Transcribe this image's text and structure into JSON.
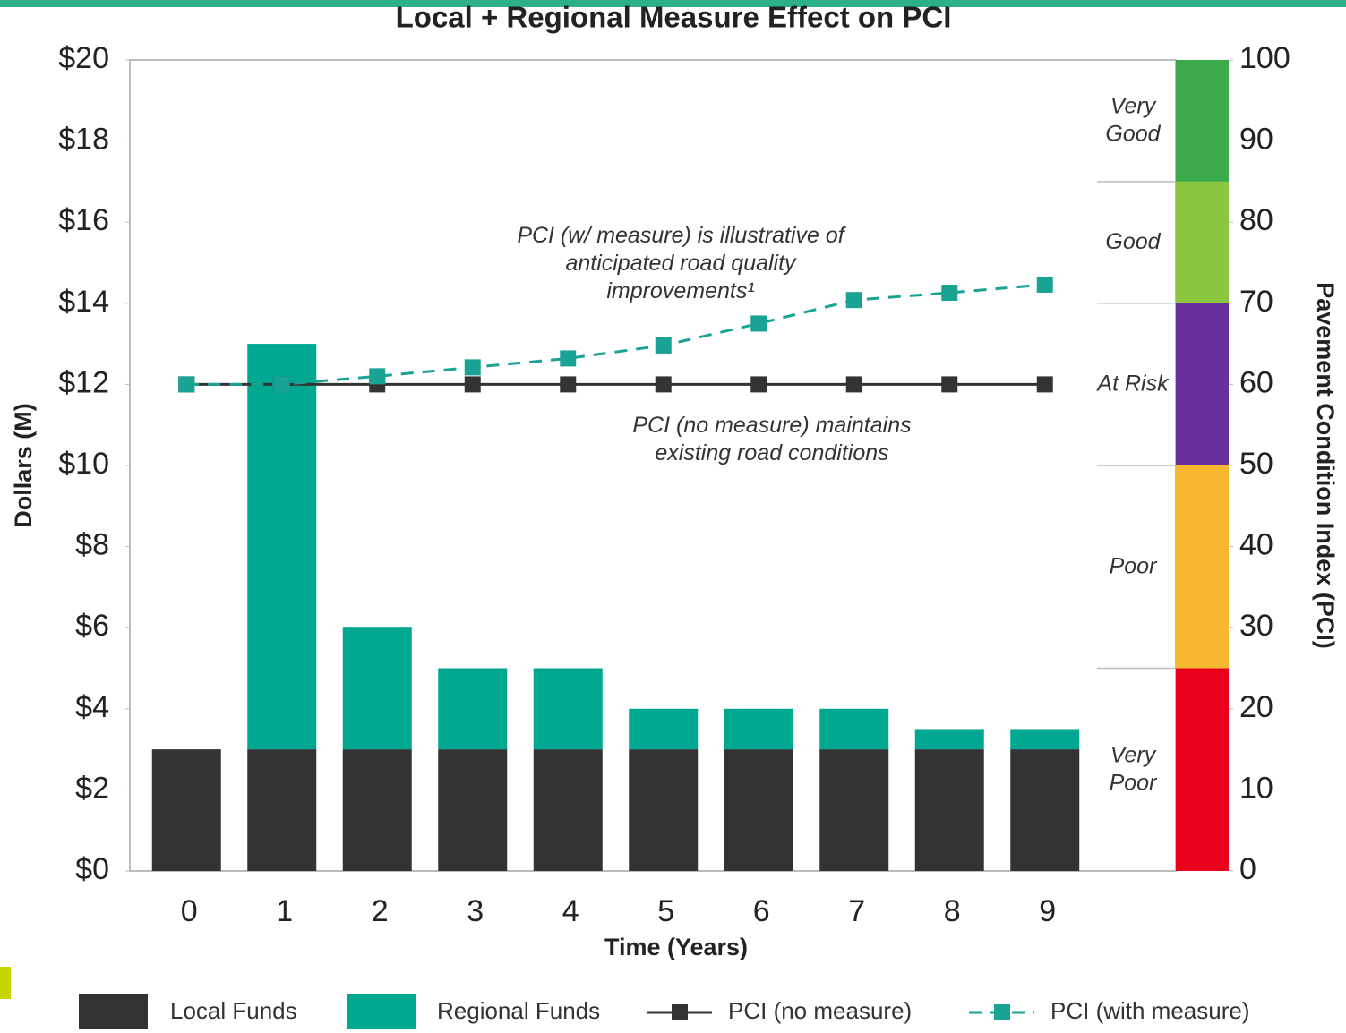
{
  "chart_data": {
    "type": "bar",
    "title": "Local + Regional Measure Effect on PCI",
    "xlabel": "Time (Years)",
    "ylabel": "Dollars (M)",
    "y2label": "Pavement Condition Index (PCI)",
    "categories": [
      "0",
      "1",
      "2",
      "3",
      "4",
      "5",
      "6",
      "7",
      "8",
      "9"
    ],
    "series": [
      {
        "name": "Local Funds",
        "type": "bar",
        "color": "#333333",
        "values": [
          3,
          3,
          3,
          3,
          3,
          3,
          3,
          3,
          3,
          3
        ]
      },
      {
        "name": "Regional Funds",
        "type": "bar",
        "color": "#00a892",
        "values": [
          0,
          10,
          3,
          2,
          2,
          1,
          1,
          1,
          0.5,
          0.5
        ]
      },
      {
        "name": "PCI (no measure)",
        "type": "line",
        "axis": "y2",
        "color": "#333333",
        "values": [
          60,
          60,
          60,
          60,
          60,
          60,
          60,
          60,
          60,
          60
        ]
      },
      {
        "name": "PCI (with measure)",
        "type": "line",
        "axis": "y2",
        "dashed": true,
        "color": "#1aa394",
        "values": [
          60,
          60,
          61,
          62.1,
          63.2,
          64.8,
          67.5,
          70.4,
          71.3,
          72.3
        ]
      }
    ],
    "ylim": [
      0,
      20
    ],
    "yticks": [
      {
        "value": 0,
        "label": "$0"
      },
      {
        "value": 2,
        "label": "$2"
      },
      {
        "value": 4,
        "label": "$4"
      },
      {
        "value": 6,
        "label": "$6"
      },
      {
        "value": 8,
        "label": "$8"
      },
      {
        "value": 10,
        "label": "$10"
      },
      {
        "value": 12,
        "label": "$12"
      },
      {
        "value": 14,
        "label": "$14"
      },
      {
        "value": 16,
        "label": "$16"
      },
      {
        "value": 18,
        "label": "$18"
      },
      {
        "value": 20,
        "label": "$20"
      }
    ],
    "y2lim": [
      0,
      100
    ],
    "y2ticks": [
      0,
      10,
      20,
      30,
      40,
      50,
      60,
      70,
      80,
      90,
      100
    ],
    "condition_bands": [
      {
        "label": [
          "Very",
          "Good"
        ],
        "from": 85,
        "to": 100,
        "color": "#3aaa4a"
      },
      {
        "label": [
          "Good"
        ],
        "from": 70,
        "to": 85,
        "color": "#8cc63f"
      },
      {
        "label": [
          "At Risk"
        ],
        "from": 50,
        "to": 70,
        "color": "#6a2f9e"
      },
      {
        "label": [
          "Poor"
        ],
        "from": 25,
        "to": 50,
        "color": "#f5b82e"
      },
      {
        "label": [
          "Very",
          "Poor"
        ],
        "from": 0,
        "to": 25,
        "color": "#e8001c"
      }
    ],
    "annotations": [
      {
        "lines": [
          "PCI (w/ measure) is illustrative of",
          "anticipated road quality",
          "improvements¹"
        ]
      },
      {
        "lines": [
          "PCI (no measure) maintains",
          "existing road conditions"
        ]
      }
    ]
  }
}
